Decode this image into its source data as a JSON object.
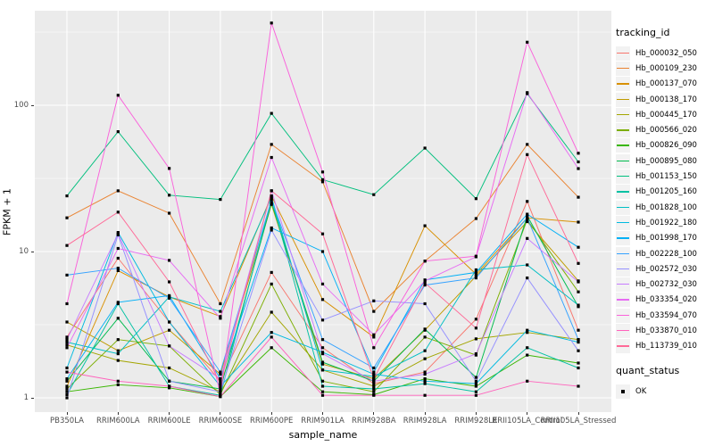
{
  "figure": {
    "background": "#FFFFFF",
    "panel_background": "#EBEBEB",
    "grid_color": "#FFFFFF",
    "tick_text_color": "#4D4D4D",
    "legend_key_background": "#F2F2F2",
    "point_color": "#000000"
  },
  "chart_data": {
    "type": "line",
    "title": "",
    "xlabel": "sample_name",
    "ylabel": "FPKM + 1",
    "y_scale": "log10",
    "y_ticks": [
      "1",
      "10",
      "100"
    ],
    "ylim": [
      0.95,
      460
    ],
    "grid": true,
    "legend_position": "right",
    "legend_title": "tracking_id",
    "shape_legend": {
      "title": "quant_status",
      "label": "OK"
    },
    "categories": [
      "PB350LA",
      "RRIM600LA",
      "RRIM600LE",
      "RRIM600SE",
      "RRIM600PE",
      "RRIM901LA",
      "RRIM928BA",
      "RRIM928LA",
      "RRIM928LE",
      "RRII105LA_Control",
      "RRII105LA_Stressed"
    ],
    "series": [
      {
        "name": "Hb_000032_050",
        "color": "#F8766D",
        "values": [
          2.6,
          9.0,
          3.3,
          1.3,
          7.2,
          2.2,
          1.25,
          1.5,
          3.45,
          22,
          2.9
        ]
      },
      {
        "name": "Hb_000109_230",
        "color": "#EA8331",
        "values": [
          17,
          26,
          18.3,
          4.4,
          54,
          30,
          3.9,
          8.6,
          16.8,
          54,
          23.5
        ]
      },
      {
        "name": "Hb_000137_070",
        "color": "#D89000",
        "values": [
          1.2,
          7.4,
          4.9,
          3.6,
          24,
          4.7,
          2.6,
          15,
          7.0,
          17,
          15.9
        ]
      },
      {
        "name": "Hb_000138_170",
        "color": "#C09B00",
        "values": [
          3.3,
          2.1,
          2.9,
          1.45,
          21,
          1.7,
          1.35,
          2.9,
          6.8,
          16,
          6.3
        ]
      },
      {
        "name": "Hb_000445_170",
        "color": "#A3A500",
        "values": [
          2.3,
          1.8,
          1.6,
          1.1,
          3.85,
          1.55,
          1.2,
          1.85,
          2.53,
          2.8,
          2.5
        ]
      },
      {
        "name": "Hb_000566_020",
        "color": "#7CAE00",
        "values": [
          1.15,
          2.5,
          2.26,
          1.05,
          6.0,
          1.3,
          1.1,
          2.6,
          1.96,
          16.5,
          5.3
        ]
      },
      {
        "name": "Hb_000826_090",
        "color": "#39B600",
        "values": [
          1.1,
          1.23,
          1.17,
          1.02,
          2.2,
          1.1,
          1.05,
          1.35,
          1.2,
          1.96,
          1.73
        ]
      },
      {
        "name": "Hb_000895_080",
        "color": "#00BB4E",
        "values": [
          1.3,
          3.5,
          1.3,
          1.15,
          21.5,
          1.75,
          1.3,
          2.95,
          1.38,
          17.5,
          4.2
        ]
      },
      {
        "name": "Hb_001153_150",
        "color": "#00BF7D",
        "values": [
          24,
          66,
          24.3,
          22.7,
          88,
          31,
          24.5,
          51,
          23,
          120,
          41
        ]
      },
      {
        "name": "Hb_001205_160",
        "color": "#00C1A3",
        "values": [
          1.05,
          4.4,
          1.2,
          1.04,
          23,
          1.2,
          1.15,
          1.25,
          1.1,
          2.2,
          1.6
        ]
      },
      {
        "name": "Hb_001828_100",
        "color": "#00BFC4",
        "values": [
          2.4,
          2.0,
          4.9,
          3.9,
          23.5,
          1.55,
          1.4,
          2.1,
          7.5,
          8.1,
          4.3
        ]
      },
      {
        "name": "Hb_001922_180",
        "color": "#00BAE0",
        "values": [
          1.6,
          13.5,
          3.3,
          1.2,
          2.8,
          2.05,
          1.45,
          1.3,
          1.25,
          2.9,
          2.4
        ]
      },
      {
        "name": "Hb_001998_170",
        "color": "#00B0F6",
        "values": [
          1.35,
          4.5,
          5.0,
          1.35,
          14.5,
          10,
          1.5,
          6.4,
          7.2,
          18,
          10.7
        ]
      },
      {
        "name": "Hb_002228_100",
        "color": "#35A2FF",
        "values": [
          6.9,
          7.7,
          4.8,
          1.5,
          22.5,
          2.5,
          1.6,
          5.9,
          6.6,
          17,
          2.5
        ]
      },
      {
        "name": "Hb_002572_030",
        "color": "#9590FF",
        "values": [
          1.0,
          13,
          1.3,
          1.1,
          14,
          3.4,
          4.6,
          4.4,
          1.3,
          6.6,
          2.1
        ]
      },
      {
        "name": "Hb_002732_030",
        "color": "#C77CFF",
        "values": [
          2.5,
          13.2,
          2.26,
          1.35,
          26,
          2.0,
          1.3,
          1.45,
          2.0,
          12.3,
          6.2
        ]
      },
      {
        "name": "Hb_033354_020",
        "color": "#E76BF3",
        "values": [
          2.2,
          10.5,
          8.7,
          3.5,
          44,
          6.0,
          2.7,
          6.3,
          9.2,
          122,
          36.9
        ]
      },
      {
        "name": "Hb_033594_070",
        "color": "#FA62DB",
        "values": [
          4.4,
          117,
          37,
          1.05,
          365,
          35,
          2.2,
          8.6,
          9.3,
          270,
          47
        ]
      },
      {
        "name": "Hb_033870_010",
        "color": "#FF62BC",
        "values": [
          1.5,
          1.3,
          1.2,
          1.02,
          2.6,
          1.04,
          1.04,
          1.04,
          1.04,
          1.3,
          1.2
        ]
      },
      {
        "name": "Hb_113739_010",
        "color": "#FF6A98",
        "values": [
          11,
          18.6,
          6.2,
          1.25,
          26,
          13.2,
          1.35,
          6.1,
          3.0,
          46,
          8.3
        ]
      }
    ]
  }
}
